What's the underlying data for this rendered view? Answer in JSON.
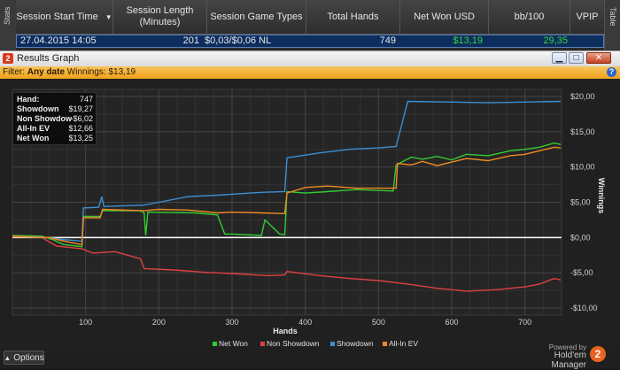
{
  "stats_panel": {
    "side_tab": "Stats",
    "right_tab": "Table",
    "columns": [
      "Session Start Time",
      "Session Length (Minutes)",
      "Session Game Types",
      "Total Hands",
      "Net Won USD",
      "bb/100",
      "VPIP"
    ],
    "row": {
      "start_time": "27.04.2015 14:05",
      "length": "201",
      "game_types": "$0,03/$0,06 NL",
      "total_hands": "749",
      "net_won": "$13,19",
      "bb100": "29,35"
    }
  },
  "window": {
    "title": "Results Graph",
    "logo": "2",
    "buttons": {
      "minimize": "▁",
      "maximize": "□",
      "close": "✕"
    }
  },
  "filter": {
    "label": "Filter: ",
    "value": "Any date",
    "winnings": "Winnings: $13,19",
    "help": "?"
  },
  "summary": {
    "hand_label": "Hand:",
    "hand_value": "747",
    "showdown_label": "Showdown",
    "showdown_value": "$19,27",
    "nonshowdown_label": "Non Showdown",
    "nonshowdown_value": "-$6,02",
    "allin_label": "All-In EV",
    "allin_value": "$12,66",
    "netwon_label": "Net Won",
    "netwon_value": "$13,25"
  },
  "chart_data": {
    "type": "line",
    "xlabel": "Hands",
    "ylabel": "Winnings",
    "xlim": [
      0,
      750
    ],
    "ylim": [
      -11,
      21
    ],
    "x_ticks": [
      100,
      200,
      300,
      400,
      500,
      600,
      700
    ],
    "x_tick_labels": [
      "100",
      "200",
      "300",
      "400",
      "500",
      "600",
      "700"
    ],
    "y_ticks": [
      20,
      15,
      10,
      5,
      0,
      -5,
      -10
    ],
    "y_tick_labels": [
      "$20,00",
      "$15,00",
      "$10,00",
      "$5,00",
      "$0,00",
      "-$5,00",
      "-$10,00"
    ],
    "grid": true,
    "legend_position": "bottom",
    "series": [
      {
        "name": "Net Won",
        "color": "#33cc33",
        "points": [
          [
            0,
            0.3
          ],
          [
            40,
            0.2
          ],
          [
            55,
            -0.3
          ],
          [
            70,
            -1.0
          ],
          [
            95,
            -1.3
          ],
          [
            97,
            3.0
          ],
          [
            120,
            3.0
          ],
          [
            123,
            3.8
          ],
          [
            175,
            3.8
          ],
          [
            180,
            3.5
          ],
          [
            182,
            0.3
          ],
          [
            185,
            3.6
          ],
          [
            250,
            3.5
          ],
          [
            280,
            3.2
          ],
          [
            290,
            0.5
          ],
          [
            300,
            0.5
          ],
          [
            340,
            0.3
          ],
          [
            345,
            2.5
          ],
          [
            365,
            0.5
          ],
          [
            372,
            0.4
          ],
          [
            375,
            6.5
          ],
          [
            400,
            6.3
          ],
          [
            430,
            6.5
          ],
          [
            470,
            6.8
          ],
          [
            520,
            6.6
          ],
          [
            524,
            10.3
          ],
          [
            545,
            11.4
          ],
          [
            560,
            11.1
          ],
          [
            580,
            11.5
          ],
          [
            600,
            11.0
          ],
          [
            620,
            11.8
          ],
          [
            650,
            11.6
          ],
          [
            680,
            12.3
          ],
          [
            700,
            12.5
          ],
          [
            720,
            12.8
          ],
          [
            740,
            13.4
          ],
          [
            749,
            13.2
          ]
        ]
      },
      {
        "name": "Non Showdown",
        "color": "#e04040",
        "points": [
          [
            0,
            0.2
          ],
          [
            40,
            0.0
          ],
          [
            60,
            -1.2
          ],
          [
            95,
            -1.6
          ],
          [
            110,
            -2.2
          ],
          [
            140,
            -2.0
          ],
          [
            175,
            -3.0
          ],
          [
            180,
            -4.4
          ],
          [
            220,
            -4.6
          ],
          [
            260,
            -4.9
          ],
          [
            300,
            -5.1
          ],
          [
            350,
            -5.4
          ],
          [
            372,
            -5.3
          ],
          [
            375,
            -4.8
          ],
          [
            420,
            -5.4
          ],
          [
            460,
            -5.8
          ],
          [
            500,
            -6.1
          ],
          [
            540,
            -6.6
          ],
          [
            580,
            -7.2
          ],
          [
            620,
            -7.6
          ],
          [
            660,
            -7.4
          ],
          [
            700,
            -7.0
          ],
          [
            720,
            -6.6
          ],
          [
            740,
            -5.8
          ],
          [
            749,
            -6.0
          ]
        ]
      },
      {
        "name": "Showdown",
        "color": "#3b8fd4",
        "points": [
          [
            0,
            0.1
          ],
          [
            50,
            0.0
          ],
          [
            70,
            -0.3
          ],
          [
            95,
            -0.5
          ],
          [
            97,
            4.2
          ],
          [
            118,
            4.3
          ],
          [
            122,
            5.8
          ],
          [
            125,
            4.4
          ],
          [
            180,
            4.6
          ],
          [
            200,
            5.0
          ],
          [
            240,
            5.8
          ],
          [
            280,
            6.0
          ],
          [
            340,
            6.4
          ],
          [
            372,
            6.5
          ],
          [
            375,
            11.3
          ],
          [
            420,
            12.0
          ],
          [
            460,
            12.5
          ],
          [
            500,
            12.7
          ],
          [
            524,
            12.9
          ],
          [
            540,
            19.3
          ],
          [
            600,
            19.2
          ],
          [
            650,
            19.1
          ],
          [
            700,
            19.2
          ],
          [
            749,
            19.3
          ]
        ]
      },
      {
        "name": "All-In EV",
        "color": "#f08a24",
        "points": [
          [
            0,
            0.1
          ],
          [
            50,
            0.0
          ],
          [
            70,
            -0.5
          ],
          [
            95,
            -1.0
          ],
          [
            97,
            2.8
          ],
          [
            120,
            2.8
          ],
          [
            123,
            4.0
          ],
          [
            180,
            3.8
          ],
          [
            200,
            4.0
          ],
          [
            240,
            3.9
          ],
          [
            280,
            3.5
          ],
          [
            300,
            3.6
          ],
          [
            340,
            3.5
          ],
          [
            372,
            3.4
          ],
          [
            375,
            6.3
          ],
          [
            400,
            7.1
          ],
          [
            430,
            7.3
          ],
          [
            470,
            7.0
          ],
          [
            524,
            7.0
          ],
          [
            526,
            10.5
          ],
          [
            545,
            10.3
          ],
          [
            560,
            10.8
          ],
          [
            580,
            10.2
          ],
          [
            600,
            10.7
          ],
          [
            620,
            11.2
          ],
          [
            650,
            10.9
          ],
          [
            680,
            11.6
          ],
          [
            700,
            11.8
          ],
          [
            720,
            12.3
          ],
          [
            740,
            12.8
          ],
          [
            749,
            12.7
          ]
        ]
      }
    ]
  },
  "bottom": {
    "options_label": "Options",
    "options_icon": "chevron-up-icon",
    "powered_by": "Powered by",
    "brand": "Hold'em Manager",
    "brand_logo": "2"
  }
}
